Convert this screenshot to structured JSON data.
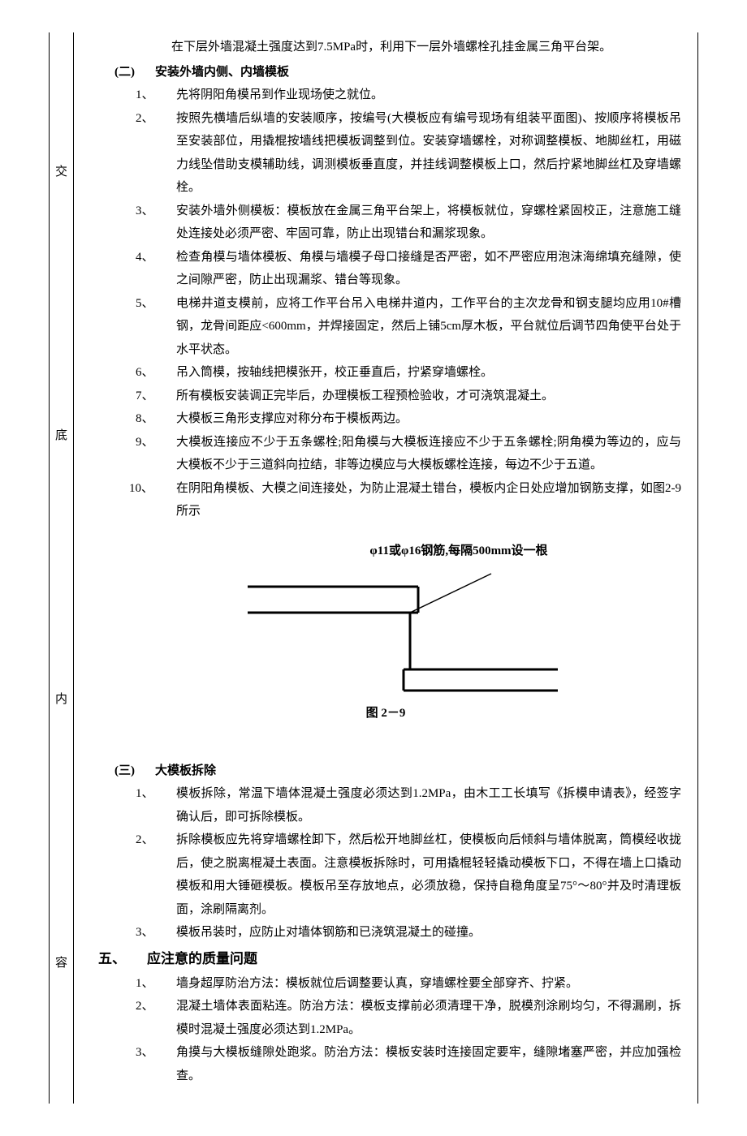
{
  "left_column_chars": [
    "交",
    "底",
    "内",
    "容"
  ],
  "intro": "在下层外墙混凝土强度达到7.5MPa时，利用下一层外墙螺栓孔挂金属三角平台架。",
  "section2": {
    "num": "(二)",
    "title": "安装外墙内侧、内墙模板",
    "items": [
      {
        "n": "1、",
        "t": "先将阴阳角模吊到作业现场使之就位。"
      },
      {
        "n": "2、",
        "t": "按照先横墙后纵墙的安装顺序，按编号(大模板应有编号现场有组装平面图)、按顺序将模板吊至安装部位，用撬棍按墙线把模板调整到位。安装穿墙螺栓，对称调整模板、地脚丝杠，用磁力线坠借助支模辅助线，调测模板垂直度，并挂线调整模板上口，然后拧紧地脚丝杠及穿墙螺栓。"
      },
      {
        "n": "3、",
        "t": "安装外墙外侧模板：模板放在金属三角平台架上，将模板就位，穿螺栓紧固校正，注意施工缝处连接处必须严密、牢固可靠，防止出现错台和漏浆现象。"
      },
      {
        "n": "4、",
        "t": "检查角模与墙体模板、角模与墙模子母口接缝是否严密，如不严密应用泡沫海绵填充缝隙，使之间隙严密，防止出现漏浆、错台等现象。"
      },
      {
        "n": "5、",
        "t": "电梯井道支模前，应将工作平台吊入电梯井道内，工作平台的主次龙骨和钢支腿均应用10#槽钢，龙骨间距应<600mm，并焊接固定，然后上铺5cm厚木板，平台就位后调节四角使平台处于水平状态。"
      },
      {
        "n": "6、",
        "t": "吊入筒模，按轴线把模张开，校正垂直后，拧紧穿墙螺栓。"
      },
      {
        "n": "7、",
        "t": "所有模板安装调正完毕后，办理模板工程预检验收，才可浇筑混凝土。"
      },
      {
        "n": "8、",
        "t": "大模板三角形支撑应对称分布于模板两边。"
      },
      {
        "n": "9、",
        "t": "大模板连接应不少于五条螺栓;阳角模与大模板连接应不少于五条螺栓;阴角模为等边的，应与大模板不少于三道斜向拉结，非等边模应与大模板螺栓连接，每边不少于五道。"
      },
      {
        "n": "10、",
        "t": "在阴阳角模板、大模之间连接处，为防止混凝土错台，模板内企日处应增加钢筋支撑，如图2-9所示"
      }
    ]
  },
  "figure": {
    "caption": "φ11或φ16钢筋,每隔500mm设一根",
    "label": "图 2－9",
    "stroke": "#000000",
    "stroke_width": 3
  },
  "section3": {
    "num": "(三)",
    "title": "大模板拆除",
    "items": [
      {
        "n": "1、",
        "t": "模板拆除，常温下墙体混凝土强度必须达到1.2MPa，由木工工长填写《拆模申请表》，经签字确认后，即可拆除模板。"
      },
      {
        "n": "2、",
        "t": "拆除模板应先将穿墙螺栓卸下，然后松开地脚丝杠，使模板向后倾斜与墙体脱离，筒模经收拢后，使之脱离棍凝土表面。注意模板拆除时，可用撬棍轻轻撬动模板下口，不得在墙上口撬动模板和用大锤砸模板。模板吊至存放地点，必须放稳，保持自稳角度呈75°～80°并及时清理板面，涂刷隔离剂。"
      },
      {
        "n": "3、",
        "t": "模板吊装时，应防止对墙体钢筋和已浇筑混凝土的碰撞。"
      }
    ]
  },
  "section5": {
    "num": "五、",
    "title": "应注意的质量问题",
    "items": [
      {
        "n": "1、",
        "t": "墙身超厚防治方法：模板就位后调整要认真，穿墙螺栓要全部穿齐、拧紧。"
      },
      {
        "n": "2、",
        "t": "混凝土墙体表面粘连。防治方法：模板支撑前必须清理干净，脱模剂涂刷均匀，不得漏刷，拆模时混凝土强度必须达到1.2MPa。"
      },
      {
        "n": "3、",
        "t": "角摸与大模板缝隙处跑浆。防治方法：模板安装时连接固定要牢，缝隙堵塞严密，并应加强检查。"
      }
    ]
  }
}
